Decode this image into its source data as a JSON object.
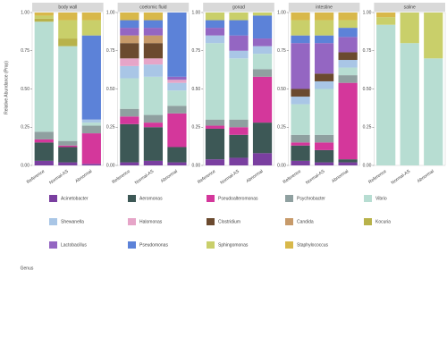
{
  "chart_data": {
    "type": "faceted-stacked-bar",
    "y_label": "Relative Abundance (Prop)",
    "legend_title": "Genus",
    "facets": [
      "body wall",
      "coelomic fluid",
      "gonad",
      "intestine",
      "saline"
    ],
    "categories": [
      "Reference",
      "Normal-AS",
      "Abnormal"
    ],
    "ylim": [
      0,
      1
    ],
    "yticks": [
      {
        "value": 0,
        "label": "0.00"
      },
      {
        "value": 0.25,
        "label": "0.25"
      },
      {
        "value": 0.5,
        "label": "0.50"
      },
      {
        "value": 0.75,
        "label": "0.75"
      },
      {
        "value": 1,
        "label": "1.00"
      }
    ],
    "series": [
      {
        "name": "Acinetobacter",
        "color": "#7a3fa0",
        "values": [
          [
            0.03,
            0.02,
            0.01
          ],
          [
            0.02,
            0.03,
            0.02
          ],
          [
            0.04,
            0.05,
            0.08
          ],
          [
            0.03,
            0.02,
            0.02
          ],
          [
            0,
            0,
            0
          ]
        ]
      },
      {
        "name": "Aeromonas",
        "color": "#3d5856",
        "values": [
          [
            0.12,
            0.1,
            0
          ],
          [
            0.25,
            0.22,
            0.1
          ],
          [
            0.2,
            0.15,
            0.2
          ],
          [
            0.1,
            0.08,
            0.02
          ],
          [
            0,
            0,
            0
          ]
        ]
      },
      {
        "name": "Pseudoalteromonas",
        "color": "#d4379b",
        "values": [
          [
            0.02,
            0.01,
            0.2
          ],
          [
            0.05,
            0.03,
            0.22
          ],
          [
            0.02,
            0.05,
            0.3
          ],
          [
            0.02,
            0.05,
            0.5
          ],
          [
            0,
            0,
            0
          ]
        ]
      },
      {
        "name": "Psychrobacter",
        "color": "#8fa0a0",
        "values": [
          [
            0.05,
            0.03,
            0.05
          ],
          [
            0.05,
            0.05,
            0.05
          ],
          [
            0.04,
            0.05,
            0.05
          ],
          [
            0.05,
            0.05,
            0.05
          ],
          [
            0,
            0,
            0
          ]
        ]
      },
      {
        "name": "Vibrio",
        "color": "#b7ddd2",
        "values": [
          [
            0.72,
            0.62,
            0.02
          ],
          [
            0.2,
            0.25,
            0.1
          ],
          [
            0.5,
            0.4,
            0.1
          ],
          [
            0.2,
            0.3,
            0.05
          ],
          [
            0.92,
            0.8,
            0.7
          ]
        ]
      },
      {
        "name": "Shewanella",
        "color": "#a9c6e6",
        "values": [
          [
            0,
            0,
            0.02
          ],
          [
            0.08,
            0.08,
            0.05
          ],
          [
            0.05,
            0.05,
            0.05
          ],
          [
            0.05,
            0.05,
            0.05
          ],
          [
            0,
            0,
            0
          ]
        ]
      },
      {
        "name": "Halomonas",
        "color": "#e6a5c8",
        "values": [
          [
            0,
            0,
            0
          ],
          [
            0.05,
            0.04,
            0.02
          ],
          [
            0,
            0,
            0
          ],
          [
            0,
            0,
            0
          ],
          [
            0,
            0,
            0
          ]
        ]
      },
      {
        "name": "Clostridium",
        "color": "#6b4a2f",
        "values": [
          [
            0,
            0,
            0
          ],
          [
            0.1,
            0.1,
            0
          ],
          [
            0,
            0,
            0
          ],
          [
            0.05,
            0.05,
            0.05
          ],
          [
            0,
            0,
            0
          ]
        ]
      },
      {
        "name": "Candida",
        "color": "#c79a6a",
        "values": [
          [
            0,
            0,
            0
          ],
          [
            0.05,
            0.05,
            0
          ],
          [
            0,
            0,
            0
          ],
          [
            0,
            0,
            0
          ],
          [
            0,
            0,
            0
          ]
        ]
      },
      {
        "name": "Kocuria",
        "color": "#b8b24a",
        "values": [
          [
            0.02,
            0.05,
            0
          ],
          [
            0,
            0,
            0
          ],
          [
            0,
            0,
            0
          ],
          [
            0,
            0,
            0
          ],
          [
            0,
            0,
            0
          ]
        ]
      },
      {
        "name": "Lactobacillus",
        "color": "#9466c2",
        "values": [
          [
            0,
            0,
            0
          ],
          [
            0.05,
            0.05,
            0.02
          ],
          [
            0.05,
            0.1,
            0.05
          ],
          [
            0.3,
            0.2,
            0.1
          ],
          [
            0,
            0,
            0
          ]
        ]
      },
      {
        "name": "Pseudomonas",
        "color": "#5c82d8",
        "values": [
          [
            0,
            0,
            0.55
          ],
          [
            0.05,
            0.05,
            0.42
          ],
          [
            0.05,
            0.1,
            0.15
          ],
          [
            0.05,
            0.05,
            0.06
          ],
          [
            0,
            0,
            0
          ]
        ]
      },
      {
        "name": "Sphingomonas",
        "color": "#c9cf6a",
        "values": [
          [
            0.02,
            0.12,
            0.1
          ],
          [
            0,
            0,
            0
          ],
          [
            0.05,
            0.05,
            0.02
          ],
          [
            0.1,
            0.1,
            0.05
          ],
          [
            0.05,
            0.2,
            0.3
          ]
        ]
      },
      {
        "name": "Staphylococcus",
        "color": "#d8b84a",
        "values": [
          [
            0.02,
            0.05,
            0.05
          ],
          [
            0.05,
            0.05,
            0
          ],
          [
            0,
            0,
            0
          ],
          [
            0.05,
            0.05,
            0.05
          ],
          [
            0.03,
            0,
            0
          ]
        ]
      }
    ]
  }
}
